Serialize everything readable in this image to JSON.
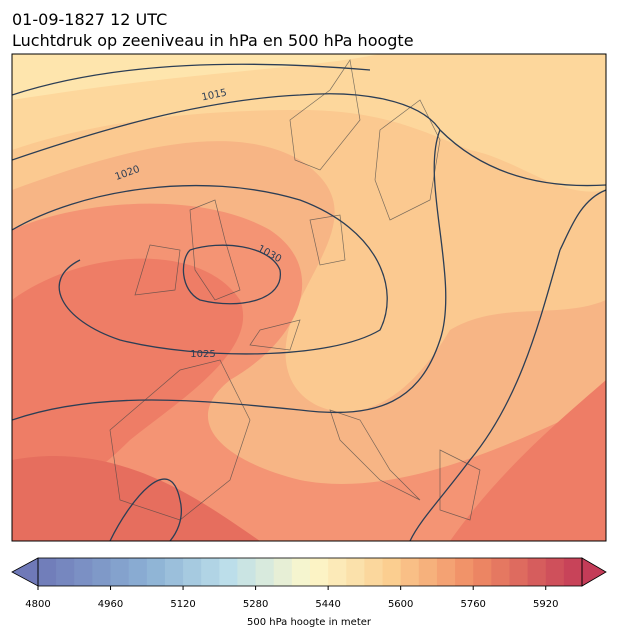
{
  "header": {
    "date": "01-09-1827 12 UTC",
    "title": "Luchtdruk op zeeniveau in hPa en 500 hPa hoogte"
  },
  "isobars": [
    {
      "label": "1015"
    },
    {
      "label": "1020"
    },
    {
      "label": "1030"
    },
    {
      "label": "1025"
    }
  ],
  "colorbar": {
    "label": "500 hPa hoogte in meter",
    "range": [
      4800,
      6000
    ],
    "step": 40,
    "ticks": [
      4800,
      4960,
      5120,
      5280,
      5440,
      5600,
      5760,
      5920
    ]
  }
}
